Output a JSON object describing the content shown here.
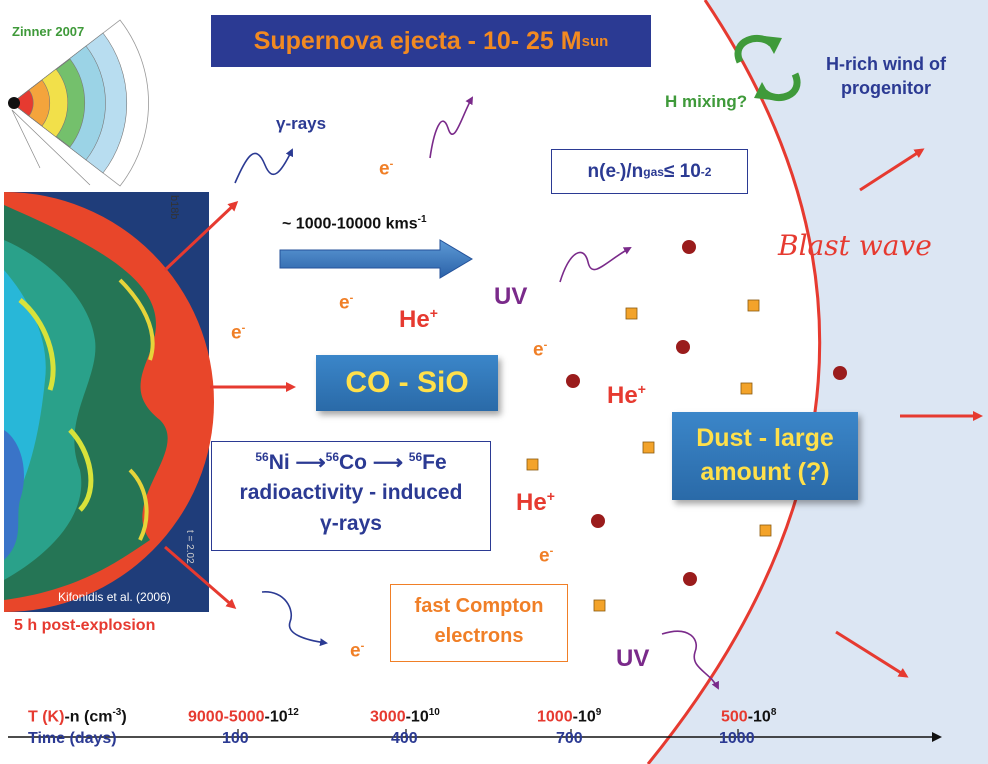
{
  "title": {
    "main": "Supernova ejecta - 10- 25 M",
    "sub": "sun"
  },
  "zinner": {
    "label": "Zinner 2007"
  },
  "simulation": {
    "panel_label": "b18b",
    "credit": "Kifonidis et al. (2006)",
    "caption": "5 h post-explosion",
    "time_label": "t = 2.02"
  },
  "gamma": {
    "label": "γ-rays"
  },
  "velocity": {
    "prefix": "~ 1000-10000 kms",
    "exp": "-1"
  },
  "electron": {
    "base": "e",
    "sup": "-"
  },
  "ion": {
    "base": "He",
    "sup": "+"
  },
  "uv_label": "UV",
  "cosio_label": "CO - SiO",
  "decay": {
    "ni": "56",
    "ni_sym": "Ni",
    "co": "56",
    "co_sym": "Co",
    "fe": "56",
    "fe_sym": "Fe",
    "line2": "radioactivity - induced",
    "line3": "γ-rays"
  },
  "compton": {
    "line1": "fast Compton",
    "line2": "electrons"
  },
  "ratio": {
    "n": "n(e",
    "n_sup": "-",
    "mid": ")/n",
    "sub": "gas",
    "le": " ≤ 10",
    "exp": "-2"
  },
  "dust": {
    "line1": "Dust - large",
    "line2": "amount (?)"
  },
  "h_mixing": "H mixing?",
  "wind": {
    "line1": "H-rich wind of",
    "line2": "progenitor"
  },
  "blast_wave": "Blast wave",
  "axis": {
    "temp_label": "T (K)",
    "density_label": "-n (cm",
    "density_exp": "-3",
    "density_close": ")",
    "ticks": [
      {
        "temp": "9000-5000",
        "density": "-10",
        "exp": "12",
        "time": "100"
      },
      {
        "temp": "3000",
        "density": "-10",
        "exp": "10",
        "time": "400"
      },
      {
        "temp": "1000",
        "density": "-10",
        "exp": "9",
        "time": "700"
      },
      {
        "temp": "500",
        "density": "-10",
        "exp": "8",
        "time": "1000"
      }
    ],
    "time_label": "Time (days)"
  },
  "colors": {
    "navy": "#2b3a93",
    "red": "#e63a30",
    "orange": "#f07f27",
    "purple": "#7a2a8a",
    "green": "#3f9a3a",
    "wind_bg": "#dce6f3",
    "dust_grain": "#f3a32a",
    "molecule": "#9a1c1c"
  }
}
